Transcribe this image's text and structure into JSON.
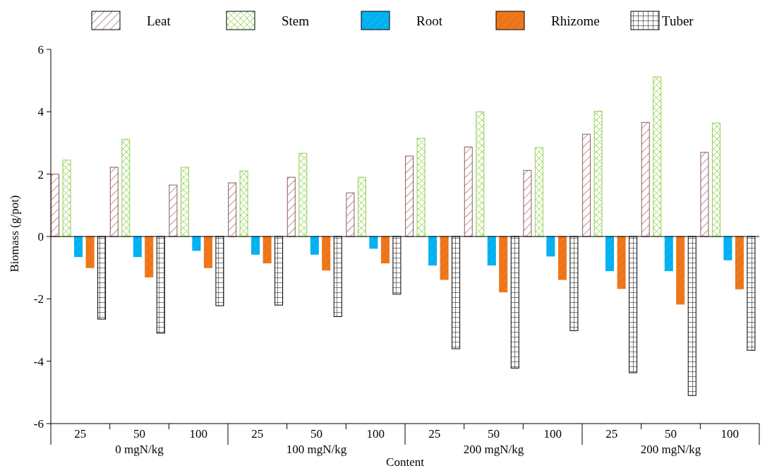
{
  "chart_data": {
    "type": "bar",
    "xlabel": "Content",
    "ylabel": "Biomass (g/pot)",
    "categories": [
      "25",
      "50",
      "100",
      "25",
      "50",
      "100",
      "25",
      "50",
      "100",
      "25",
      "50",
      "100"
    ],
    "annotations": [
      "0 mgN/kg",
      "100 mgN/kg",
      "200 mgN/kg",
      "200 mgN/kg"
    ],
    "series": [
      {
        "name": "Leat",
        "color": "#8b5a5a",
        "values": [
          2.0,
          2.22,
          1.65,
          1.72,
          1.9,
          1.4,
          2.58,
          2.87,
          2.12,
          3.28,
          3.66,
          2.7
        ]
      },
      {
        "name": "Stem",
        "color": "#92d050",
        "values": [
          2.45,
          3.12,
          2.22,
          2.1,
          2.67,
          1.9,
          3.15,
          4.0,
          2.85,
          4.02,
          5.12,
          3.64
        ]
      },
      {
        "name": "Root",
        "color": "#00b0f0",
        "values": [
          -0.65,
          -0.65,
          -0.45,
          -0.57,
          -0.57,
          -0.38,
          -0.92,
          -0.92,
          -0.63,
          -1.1,
          -1.1,
          -0.75
        ]
      },
      {
        "name": "Rhizome",
        "color": "#ed7417",
        "values": [
          -1.0,
          -1.3,
          -1.0,
          -0.85,
          -1.08,
          -0.85,
          -1.38,
          -1.78,
          -1.38,
          -1.67,
          -2.17,
          -1.68
        ]
      },
      {
        "name": "Tuber",
        "color": "#000000",
        "values": [
          -2.65,
          -3.1,
          -2.22,
          -2.2,
          -2.57,
          -1.85,
          -3.6,
          -4.22,
          -3.02,
          -4.37,
          -5.1,
          -3.65
        ]
      }
    ],
    "ylim": [
      -6,
      6
    ],
    "yticks": [
      -6,
      -4,
      -2,
      0,
      2,
      4,
      6
    ],
    "legend": "top"
  }
}
